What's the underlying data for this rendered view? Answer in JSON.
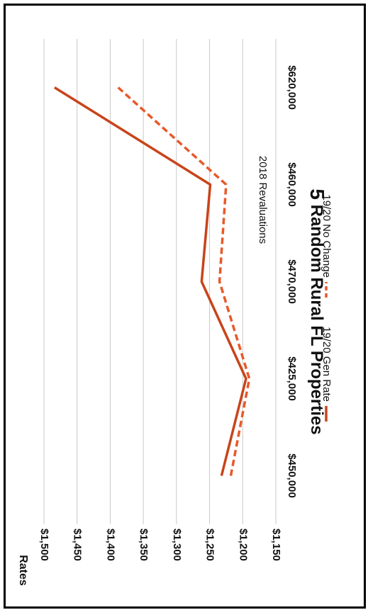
{
  "chart_data": {
    "type": "line",
    "title_number": "5",
    "title_rest": " Random Rural FL Properties",
    "xlabel": "2018 Revaluations",
    "ylabel": "Rates",
    "categories": [
      "$450,000",
      "$425,000",
      "$470,000",
      "$460,000",
      "$620,000"
    ],
    "y_ticks": [
      "$1,150",
      "$1,200",
      "$1,250",
      "$1,300",
      "$1,350",
      "$1,400",
      "$1,450",
      "$1,500"
    ],
    "ylim": [
      1150,
      1500
    ],
    "grid": true,
    "legend_position": "bottom",
    "orientation": "rotated 90 degrees clockwise",
    "series": [
      {
        "name": "19/20 Gen Rate",
        "style": "solid",
        "color": "#c8441a",
        "values": [
          1232,
          1195,
          1262,
          1249,
          1484
        ]
      },
      {
        "name": "19/20 No Change",
        "style": "dashed",
        "color": "#e8592a",
        "values": [
          1218,
          1190,
          1235,
          1225,
          1388
        ]
      }
    ]
  }
}
